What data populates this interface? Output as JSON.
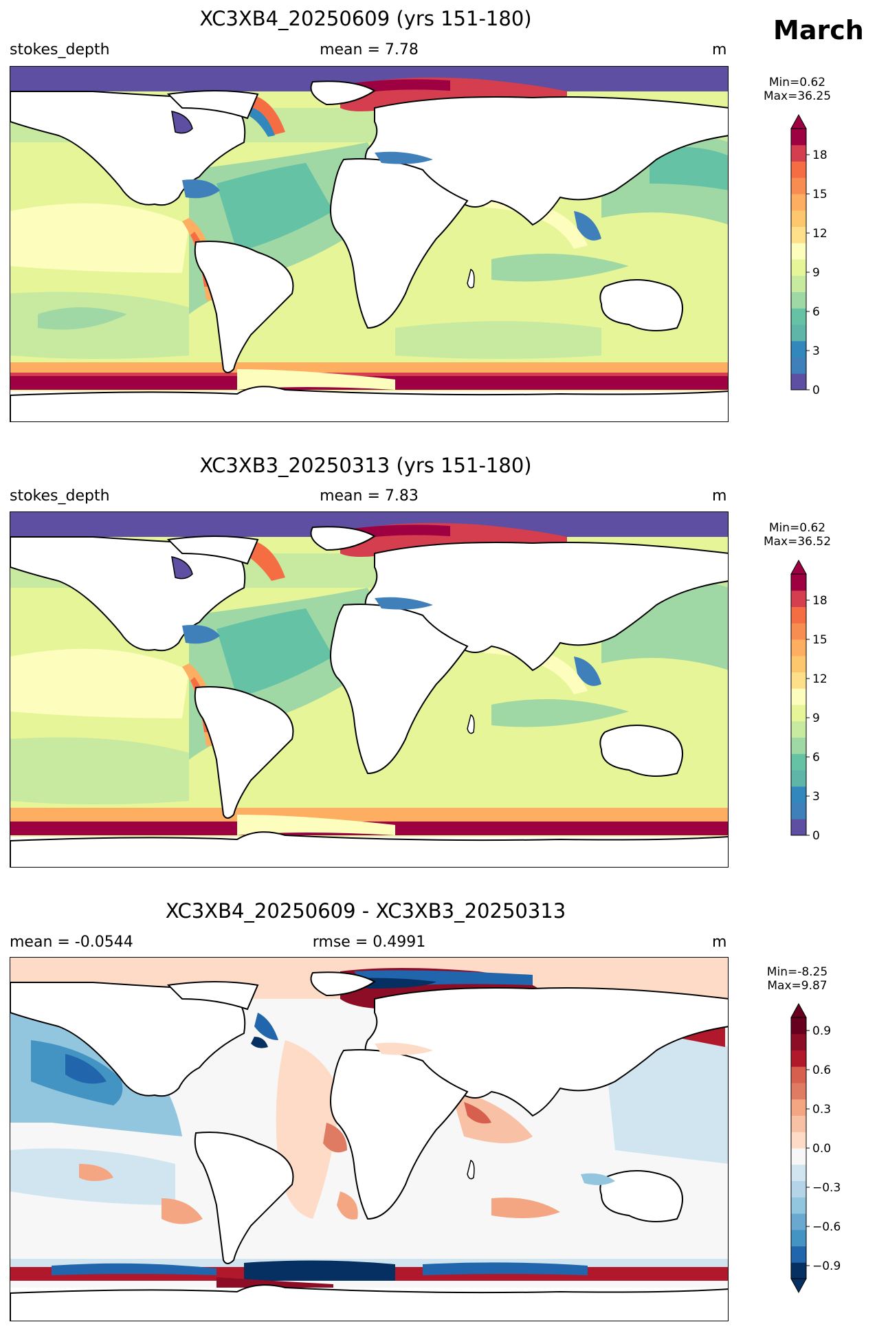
{
  "month": "March",
  "panels": [
    {
      "title": "XC3XB4_20250609 (yrs 151-180)",
      "left_label": "stokes_depth",
      "center_label": "mean = 7.78",
      "unit": "m",
      "min_label": "Min=0.62",
      "max_label": "Max=36.25",
      "kind": "sequential"
    },
    {
      "title": "XC3XB3_20250313 (yrs 151-180)",
      "left_label": "stokes_depth",
      "center_label": "mean = 7.83",
      "unit": "m",
      "min_label": "Min=0.62",
      "max_label": "Max=36.52",
      "kind": "sequential"
    },
    {
      "title": "XC3XB4_20250609 - XC3XB3_20250313",
      "left_label": "mean = -0.0544",
      "center_label": "rmse = 0.4991",
      "unit": "m",
      "min_label": "Min=-8.25",
      "max_label": "Max=9.87",
      "kind": "diverging"
    }
  ],
  "colorbars": {
    "sequential": {
      "ticks": [
        "0",
        "3",
        "6",
        "9",
        "12",
        "15",
        "18"
      ],
      "tick_values": [
        0,
        3,
        6,
        9,
        12,
        15,
        18
      ],
      "range": [
        0,
        20
      ],
      "colors": [
        "#5e4fa2",
        "#3f7fba",
        "#3288bd",
        "#5fb6a8",
        "#66c2a5",
        "#9fd8a4",
        "#c8e9a0",
        "#e6f598",
        "#fdfdbd",
        "#fee08b",
        "#fdc76e",
        "#fdae61",
        "#f88d52",
        "#f46d43",
        "#d53e4f",
        "#9e0142"
      ],
      "extend": "max"
    },
    "diverging": {
      "ticks": [
        "0.9",
        "0.6",
        "0.3",
        "0.0",
        "−0.3",
        "−0.6",
        "−0.9"
      ],
      "tick_values": [
        0.9,
        0.6,
        0.3,
        0.0,
        -0.3,
        -0.6,
        -0.9
      ],
      "range": [
        -1.0,
        1.0
      ],
      "colors": [
        "#053061",
        "#2166ac",
        "#4393c3",
        "#6aa8d0",
        "#92c5de",
        "#b5d4e8",
        "#d1e5f0",
        "#f7f7f7",
        "#fddbc7",
        "#f8c0a4",
        "#f4a582",
        "#e07b63",
        "#d6604d",
        "#b2182b",
        "#8c0d25",
        "#67001f"
      ],
      "extend": "both"
    }
  },
  "chart_data": [
    {
      "type": "heatmap",
      "title": "XC3XB4_20250609 (yrs 151-180)",
      "variable": "stokes_depth",
      "unit": "m",
      "mean": 7.78,
      "min": 0.62,
      "max": 36.25,
      "colorbar_range": [
        0,
        20
      ],
      "colorbar_ticks": [
        0,
        3,
        6,
        9,
        12,
        15,
        18
      ],
      "projection": "global lat-lon"
    },
    {
      "type": "heatmap",
      "title": "XC3XB3_20250313 (yrs 151-180)",
      "variable": "stokes_depth",
      "unit": "m",
      "mean": 7.83,
      "min": 0.62,
      "max": 36.52,
      "colorbar_range": [
        0,
        20
      ],
      "colorbar_ticks": [
        0,
        3,
        6,
        9,
        12,
        15,
        18
      ],
      "projection": "global lat-lon"
    },
    {
      "type": "heatmap",
      "title": "XC3XB4_20250609 - XC3XB3_20250313",
      "unit": "m",
      "mean": -0.0544,
      "rmse": 0.4991,
      "min": -8.25,
      "max": 9.87,
      "colorbar_range": [
        -1.0,
        1.0
      ],
      "colorbar_ticks": [
        -0.9,
        -0.6,
        -0.3,
        0.0,
        0.3,
        0.6,
        0.9
      ],
      "projection": "global lat-lon"
    }
  ]
}
